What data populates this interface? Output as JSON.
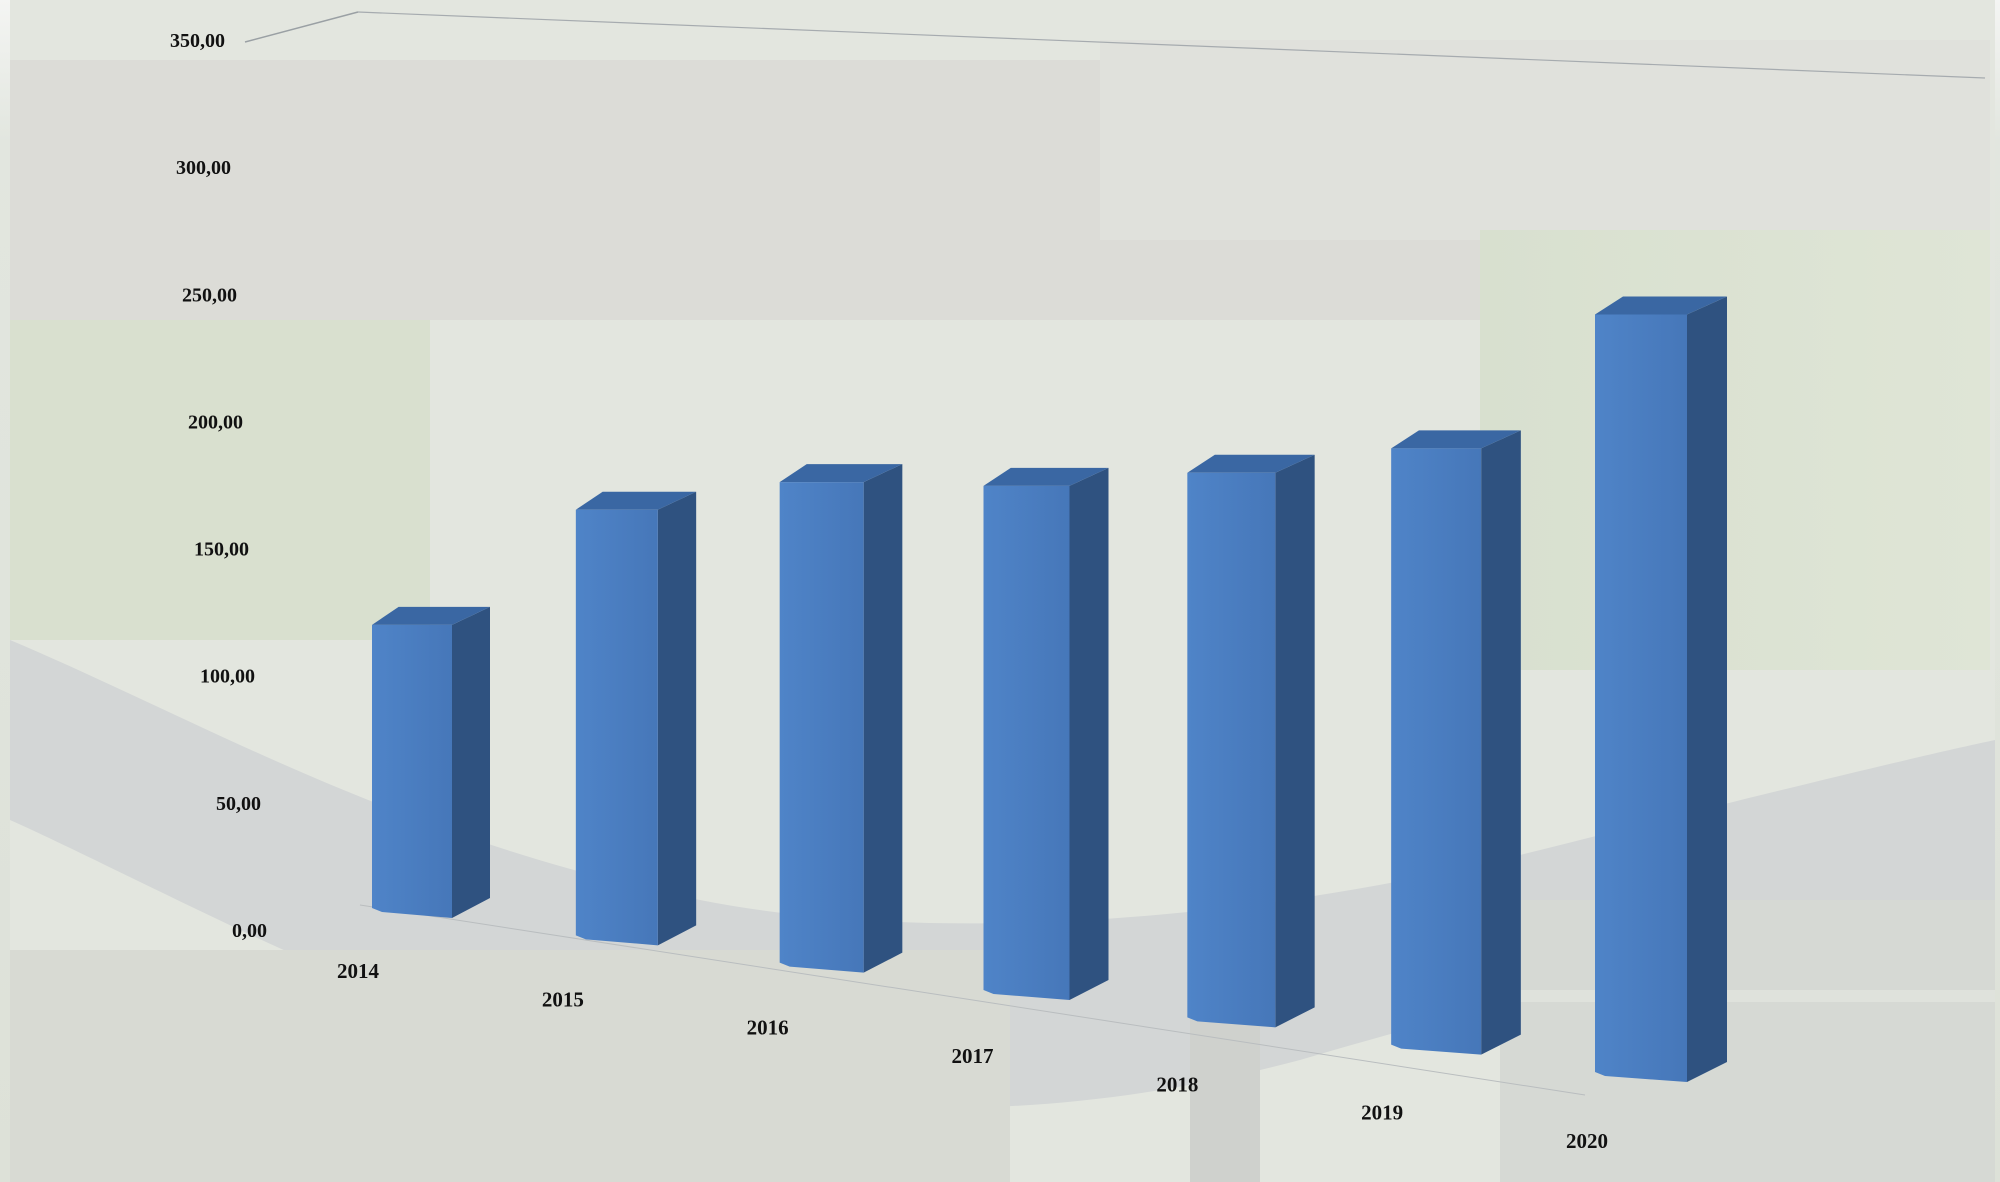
{
  "chart_data": {
    "type": "bar",
    "style": "3d-column",
    "categories": [
      "2014",
      "2015",
      "2016",
      "2017",
      "2018",
      "2019",
      "2020"
    ],
    "values": [
      143,
      205,
      223,
      226,
      236,
      250,
      307
    ],
    "y_ticks": [
      "0,00",
      "50,00",
      "100,00",
      "150,00",
      "200,00",
      "250,00",
      "300,00",
      "350,00"
    ],
    "ylim": [
      0,
      350
    ],
    "title": "",
    "xlabel": "",
    "ylabel": "",
    "grid": false,
    "legend": "none",
    "background": "aerial photo of a riverside town, washed out",
    "colors": {
      "bar_front": "#4a7ec2",
      "bar_side": "#2f5280",
      "bar_top": "#3a67a3"
    }
  }
}
